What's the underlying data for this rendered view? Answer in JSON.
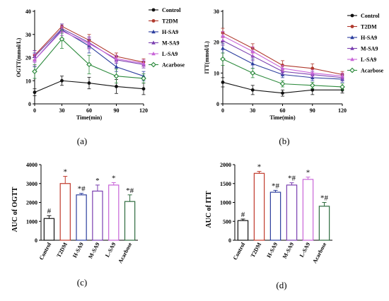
{
  "panel_labels": [
    "(a)",
    "(b)",
    "(c)",
    "(d)"
  ],
  "chart_data": [
    {
      "id": "a",
      "type": "line",
      "panel_label": "(a)",
      "xlabel": "Time(min)",
      "ylabel": "OGTT(mmol/L)",
      "x": [
        0,
        30,
        60,
        90,
        120
      ],
      "xticks": [
        "0",
        "30",
        "60",
        "90",
        "120"
      ],
      "yticks": [
        "0",
        "10",
        "20",
        "30",
        "40"
      ],
      "xlim": [
        0,
        120
      ],
      "ylim": [
        0,
        40
      ],
      "grid": false,
      "legend_position": "right",
      "series": [
        {
          "name": "Control",
          "color": "#111111",
          "marker": "circle",
          "values": [
            5.0,
            10.0,
            9.0,
            7.5,
            6.5
          ],
          "err": [
            1.5,
            2.0,
            2.5,
            3.0,
            2.5
          ]
        },
        {
          "name": "T2DM",
          "color": "#b03a2e",
          "marker": "circle",
          "values": [
            21.0,
            33.5,
            27.5,
            20.5,
            18.0
          ],
          "err": [
            2.0,
            1.0,
            2.5,
            1.5,
            1.5
          ]
        },
        {
          "name": "H-SA9",
          "color": "#2c3e9e",
          "marker": "triangle",
          "values": [
            19.0,
            32.0,
            25.0,
            16.0,
            12.0
          ],
          "err": [
            3.0,
            2.5,
            3.0,
            2.0,
            2.0
          ]
        },
        {
          "name": "M-SA9",
          "color": "#7a3fb0",
          "marker": "triangle",
          "values": [
            20.5,
            32.5,
            26.5,
            19.0,
            17.0
          ],
          "err": [
            2.5,
            2.0,
            2.5,
            1.5,
            1.5
          ]
        },
        {
          "name": "L-SA9",
          "color": "#c864d8",
          "marker": "triangle",
          "values": [
            19.0,
            31.5,
            26.0,
            19.5,
            17.5
          ],
          "err": [
            2.5,
            2.0,
            2.5,
            1.5,
            1.5
          ]
        },
        {
          "name": "Acarbose",
          "color": "#2e8b3e",
          "marker": "diamond",
          "values": [
            14.0,
            28.0,
            17.0,
            12.0,
            11.0
          ],
          "err": [
            3.0,
            4.0,
            4.0,
            3.0,
            2.0
          ]
        }
      ]
    },
    {
      "id": "b",
      "type": "line",
      "panel_label": "(b)",
      "xlabel": "Time(min)",
      "ylabel": "ITT(mmol/L)",
      "x": [
        0,
        30,
        60,
        90,
        120
      ],
      "xticks": [
        "0",
        "30",
        "60",
        "90",
        "120"
      ],
      "yticks": [
        "0",
        "10",
        "20",
        "30"
      ],
      "xlim": [
        0,
        120
      ],
      "ylim": [
        0,
        30
      ],
      "grid": false,
      "legend_position": "right",
      "series": [
        {
          "name": "Control",
          "color": "#111111",
          "marker": "circle",
          "values": [
            7.0,
            4.5,
            3.5,
            4.5,
            4.5
          ],
          "err": [
            1.5,
            1.5,
            1.0,
            1.5,
            1.0
          ]
        },
        {
          "name": "T2DM",
          "color": "#b03a2e",
          "marker": "circle",
          "values": [
            23.0,
            18.0,
            12.5,
            11.5,
            9.5
          ],
          "err": [
            1.5,
            1.5,
            1.5,
            1.5,
            1.0
          ]
        },
        {
          "name": "H-SA9",
          "color": "#2c3e9e",
          "marker": "triangle",
          "values": [
            18.0,
            13.0,
            9.5,
            8.5,
            8.0
          ],
          "err": [
            1.5,
            1.5,
            1.0,
            1.0,
            1.0
          ]
        },
        {
          "name": "M-SA9",
          "color": "#7a3fb0",
          "marker": "triangle",
          "values": [
            20.5,
            15.5,
            10.5,
            9.5,
            8.5
          ],
          "err": [
            1.5,
            1.5,
            1.0,
            1.0,
            1.0
          ]
        },
        {
          "name": "L-SA9",
          "color": "#c864d8",
          "marker": "triangle",
          "values": [
            22.0,
            17.0,
            11.5,
            10.0,
            9.0
          ],
          "err": [
            1.5,
            1.5,
            1.0,
            1.0,
            1.0
          ]
        },
        {
          "name": "Acarbose",
          "color": "#2e8b3e",
          "marker": "diamond",
          "values": [
            14.5,
            10.0,
            6.5,
            6.0,
            5.5
          ],
          "err": [
            2.0,
            1.5,
            1.0,
            1.0,
            1.0
          ]
        }
      ]
    },
    {
      "id": "c",
      "type": "bar",
      "panel_label": "(c)",
      "xlabel": "",
      "ylabel": "AUC of OGTT",
      "categories": [
        "Control",
        "T2DM",
        "H-SA9",
        "M-SA9",
        "L-SA9",
        "Acarbose"
      ],
      "values": [
        1150,
        3000,
        2400,
        2600,
        2920,
        2050
      ],
      "err": [
        150,
        380,
        80,
        320,
        130,
        350
      ],
      "annotations": [
        "#",
        "*",
        "*#",
        "*",
        "*",
        "*#"
      ],
      "colors": [
        "#111111",
        "#c0392b",
        "#2c3e9e",
        "#7a3fb0",
        "#c864d8",
        "#2e6b3e"
      ],
      "yticks": [
        "0",
        "1000",
        "2000",
        "3000",
        "4000"
      ],
      "ylim": [
        0,
        4000
      ],
      "grid": false
    },
    {
      "id": "d",
      "type": "bar",
      "panel_label": "(d)",
      "xlabel": "",
      "ylabel": "AUC of ITT",
      "categories": [
        "Control",
        "T2DM",
        "H-SA9",
        "M-SA9",
        "L-SA9",
        "Acarbose"
      ],
      "values": [
        520,
        1770,
        1270,
        1460,
        1610,
        900
      ],
      "err": [
        40,
        50,
        50,
        60,
        60,
        100
      ],
      "annotations": [
        "#",
        "*",
        "*#",
        "*#",
        "*",
        "*#"
      ],
      "colors": [
        "#111111",
        "#c0392b",
        "#2c3e9e",
        "#7a3fb0",
        "#c864d8",
        "#2e6b3e"
      ],
      "yticks": [
        "0",
        "500",
        "1000",
        "1500",
        "2000"
      ],
      "ylim": [
        0,
        2000
      ],
      "grid": false
    }
  ]
}
